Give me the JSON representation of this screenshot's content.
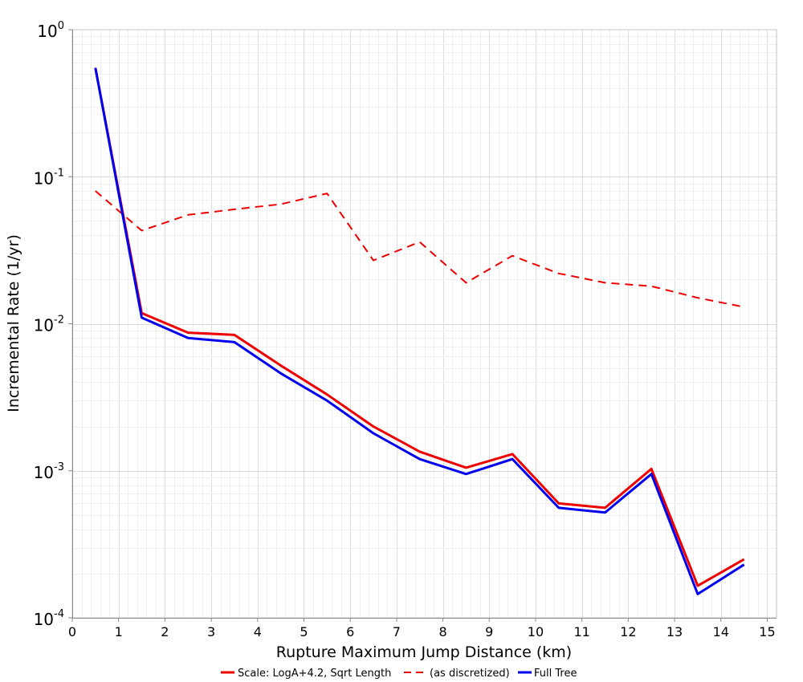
{
  "chart_data": {
    "type": "line",
    "title": "",
    "xlabel": "Rupture Maximum Jump Distance (km)",
    "ylabel": "Incremental Rate (1/yr)",
    "xlim": [
      0,
      15.2
    ],
    "ylim": [
      0.0001,
      1
    ],
    "yscale": "log",
    "grid": true,
    "legend_position": "bottom",
    "x_ticks": [
      "0",
      "1",
      "2",
      "3",
      "4",
      "5",
      "6",
      "7",
      "8",
      "9",
      "10",
      "11",
      "12",
      "13",
      "14",
      "15"
    ],
    "y_ticks": [
      {
        "value": 1,
        "base": "10",
        "exp": "0"
      },
      {
        "value": 0.1,
        "base": "10",
        "exp": "-1"
      },
      {
        "value": 0.01,
        "base": "10",
        "exp": "-2"
      },
      {
        "value": 0.001,
        "base": "10",
        "exp": "-3"
      },
      {
        "value": 0.0001,
        "base": "10",
        "exp": "-4"
      }
    ],
    "x": [
      0.5,
      1.5,
      2.5,
      3.5,
      4.5,
      5.5,
      6.5,
      7.5,
      8.5,
      9.5,
      10.5,
      11.5,
      12.5,
      13.5,
      14.5
    ],
    "series": [
      {
        "name": "Scale: LogA+4.2, Sqrt Length",
        "color": "#ee0000",
        "dash": "solid",
        "values": [
          0.55,
          0.0118,
          0.0087,
          0.0084,
          0.0052,
          0.0033,
          0.002,
          0.00135,
          0.00105,
          0.0013,
          0.0006,
          0.00056,
          0.00103,
          0.000165,
          0.00025
        ]
      },
      {
        "name": "(as discretized)",
        "color": "#ee0000",
        "dash": "dashed",
        "values": [
          0.08,
          0.043,
          0.055,
          0.06,
          0.065,
          0.077,
          0.027,
          0.036,
          0.019,
          0.029,
          0.022,
          0.019,
          0.018,
          0.015,
          0.013
        ]
      },
      {
        "name": "Full Tree",
        "color": "#0000ee",
        "dash": "solid",
        "values": [
          0.55,
          0.011,
          0.008,
          0.0075,
          0.0046,
          0.003,
          0.0018,
          0.0012,
          0.00095,
          0.0012,
          0.00056,
          0.00052,
          0.00095,
          0.000145,
          0.00023
        ]
      }
    ]
  }
}
